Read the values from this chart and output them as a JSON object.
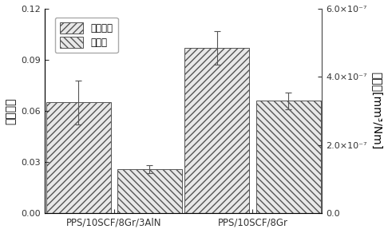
{
  "groups": [
    "PPS/10SCF/8Gr/3AlN",
    "PPS/10SCF/8Gr"
  ],
  "friction_values": [
    0.065,
    0.097
  ],
  "friction_errors": [
    0.013,
    0.01
  ],
  "wear_values": [
    1.3e-07,
    3.3e-07
  ],
  "wear_errors": [
    1.2e-08,
    2.5e-08
  ],
  "left_ylim": [
    0,
    0.12
  ],
  "left_yticks": [
    0.0,
    0.03,
    0.06,
    0.09,
    0.12
  ],
  "right_ylim": [
    0,
    6e-07
  ],
  "right_yticks_vals": [
    0.0,
    2e-07,
    4e-07,
    6e-07
  ],
  "right_ytick_labels": [
    "0.0",
    "2.0×10⁻⁷",
    "4.0×10⁻⁷",
    "6.0×10⁻⁷"
  ],
  "left_ylabel": "摩擦系数",
  "right_ylabel": "磨损率[mm³/Nm]",
  "legend_friction": "摩擦系数",
  "legend_wear": "磨损率",
  "bar_width": 0.28,
  "group_positions": [
    0.3,
    0.9
  ],
  "friction_hatch": "////",
  "wear_hatch": "\\\\\\\\",
  "bar_facecolor": "#e8e8e8",
  "bar_edgecolor": "#555555",
  "figsize": [
    4.86,
    2.92
  ],
  "dpi": 100
}
